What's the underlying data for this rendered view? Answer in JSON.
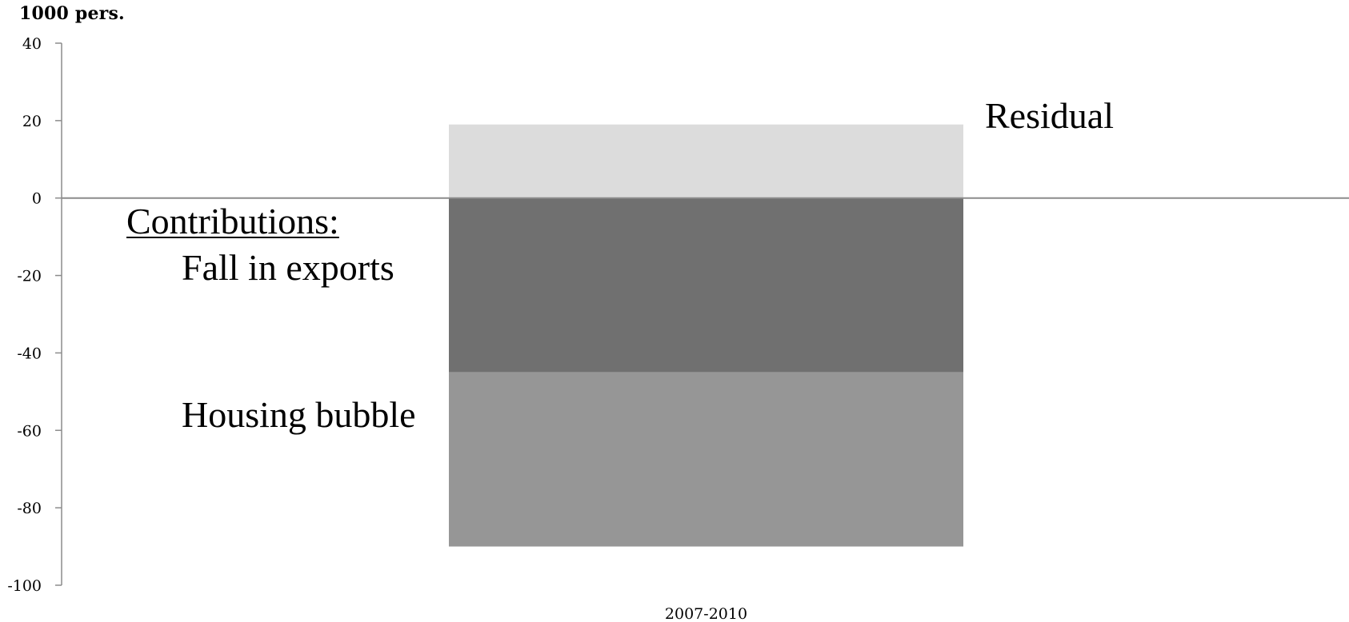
{
  "chart_data": {
    "type": "bar",
    "stacked": true,
    "ylabel": "1000 pers.",
    "ylim": [
      -100,
      40
    ],
    "yticks": [
      40,
      20,
      0,
      -20,
      -40,
      -60,
      -80,
      -100
    ],
    "categories": [
      "2007-2010"
    ],
    "series": [
      {
        "name": "Residual",
        "values": [
          19
        ],
        "color": "#dcdcdc"
      },
      {
        "name": "Fall in exports",
        "values": [
          -45
        ],
        "color": "#707070"
      },
      {
        "name": "Housing bubble",
        "values": [
          -45
        ],
        "color": "#969696"
      }
    ],
    "annotations": {
      "contributions": "Contributions:",
      "exports": "Fall in exports",
      "housing": "Housing bubble",
      "residual": "Residual"
    },
    "grid": false,
    "legend": "none"
  }
}
